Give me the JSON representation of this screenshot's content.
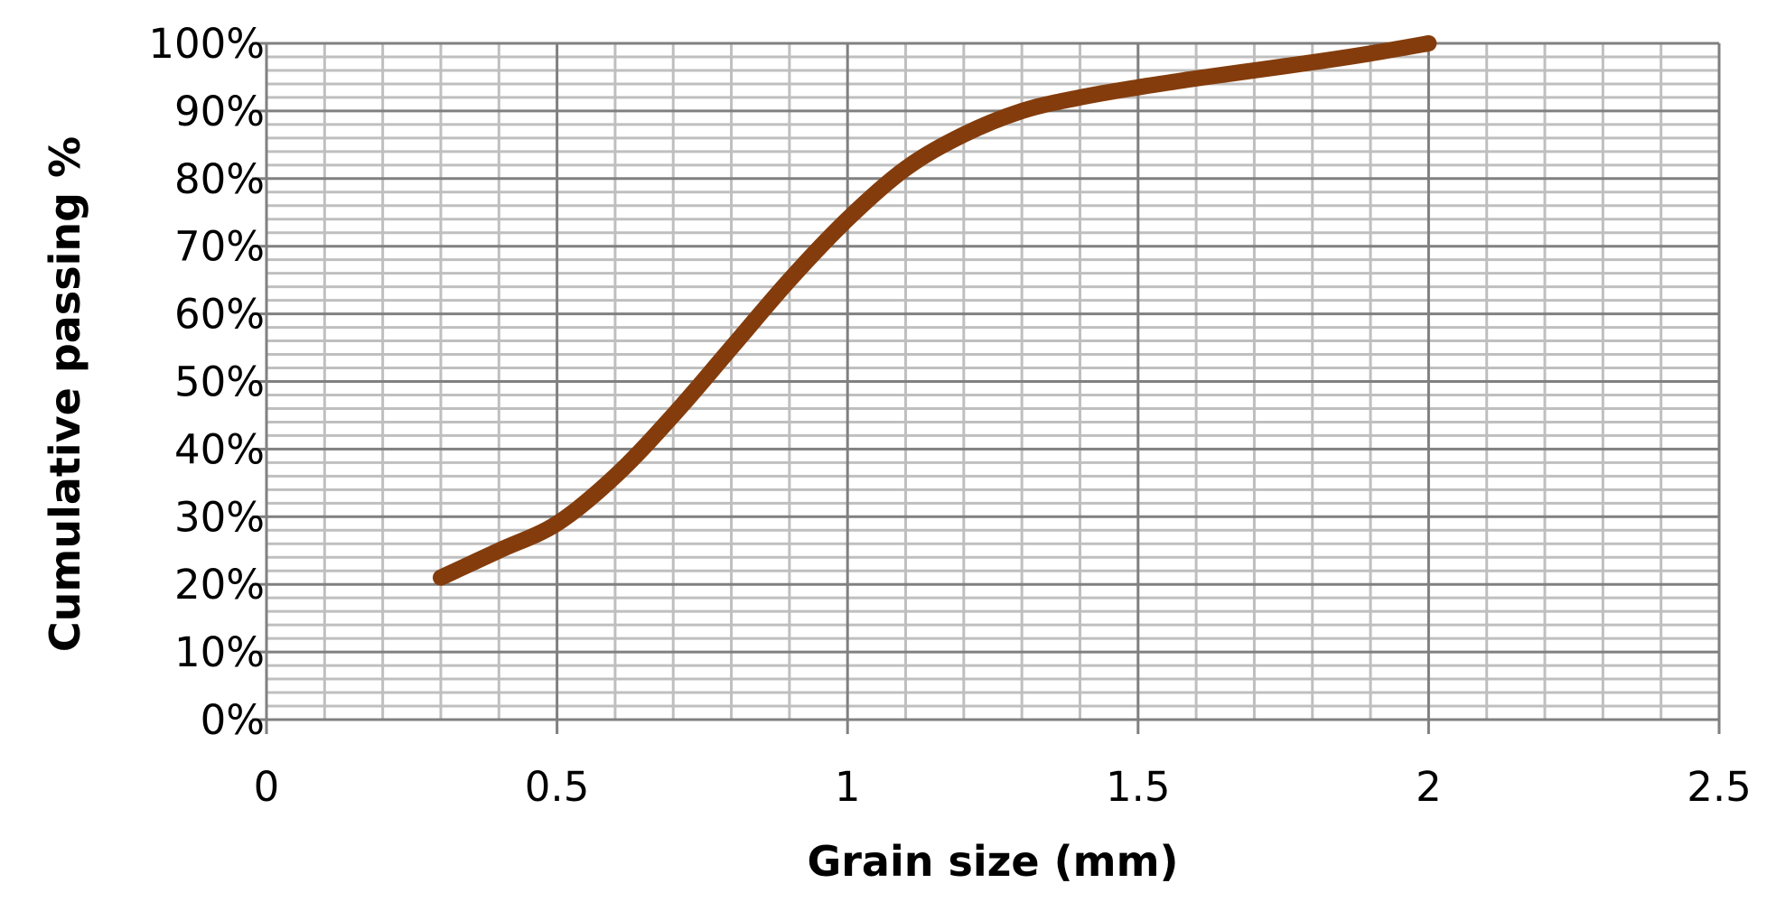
{
  "chart_data": {
    "type": "line",
    "xlabel": "Grain size (mm)",
    "ylabel": "Cumulative passing %",
    "xlim": [
      0,
      2.5
    ],
    "ylim": [
      0,
      100
    ],
    "x_ticks": [
      "0",
      "0.5",
      "1",
      "1.5",
      "2",
      "2.5"
    ],
    "x_tick_values": [
      0,
      0.5,
      1,
      1.5,
      2,
      2.5
    ],
    "y_ticks": [
      "0%",
      "10%",
      "20%",
      "30%",
      "40%",
      "50%",
      "60%",
      "70%",
      "80%",
      "90%",
      "100%"
    ],
    "y_tick_values": [
      0,
      10,
      20,
      30,
      40,
      50,
      60,
      70,
      80,
      90,
      100
    ],
    "grid": true,
    "legend": "none",
    "series": [
      {
        "color": "#843c0c",
        "x": [
          0.3,
          0.4,
          0.5,
          0.6,
          0.7,
          0.8,
          0.9,
          1.0,
          1.1,
          1.2,
          1.3,
          1.4,
          1.5,
          1.6,
          1.7,
          1.8,
          1.9,
          2.0
        ],
        "y": [
          21,
          25,
          29,
          36,
          45,
          55,
          65,
          74,
          81.5,
          86.5,
          90,
          92,
          93.5,
          94.8,
          96,
          97.2,
          98.5,
          100
        ]
      }
    ]
  },
  "colors": {
    "major_grid": "#808080",
    "minor_grid": "#bfbfbf",
    "axis": "#808080",
    "series": "#843c0c"
  }
}
